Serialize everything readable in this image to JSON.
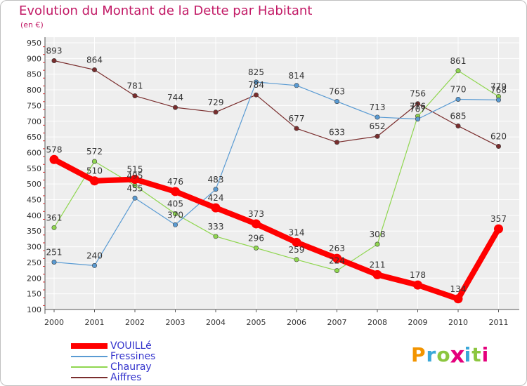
{
  "title": "Evolution du Montant de la Dette par Habitant",
  "unit": "(en €)",
  "logo": {
    "letters": [
      "P",
      "r",
      "o",
      "x",
      "i",
      "t",
      "i"
    ],
    "colors": [
      "#f29400",
      "#3aa8d8",
      "#8cc63f",
      "#e4007c",
      "#3aa8d8",
      "#8cc63f",
      "#e4007c"
    ]
  },
  "chart_data": {
    "type": "line",
    "title": "Evolution du Montant de la Dette par Habitant",
    "ylabel": "(en €)",
    "x": [
      "2000",
      "2001",
      "2002",
      "2003",
      "2004",
      "2005",
      "2006",
      "2007",
      "2008",
      "2009",
      "2010",
      "2011"
    ],
    "ylim": [
      100,
      950
    ],
    "yticks": [
      "100",
      "150",
      "200",
      "250",
      "300",
      "350",
      "400",
      "450",
      "500",
      "550",
      "600",
      "650",
      "700",
      "750",
      "800",
      "850",
      "900",
      "950"
    ],
    "grid": true,
    "legend_position": "bottom-left",
    "series": [
      {
        "name": "VOUILLé",
        "values": [
          578,
          510,
          515,
          476,
          424,
          373,
          314,
          263,
          211,
          178,
          134,
          357
        ],
        "color": "#ff0000"
      },
      {
        "name": "Fressines",
        "values": [
          251,
          240,
          455,
          370,
          483,
          825,
          814,
          763,
          713,
          707,
          770,
          768
        ],
        "color": "#5a9bd3"
      },
      {
        "name": "Chauray",
        "values": [
          361,
          572,
          495,
          405,
          333,
          296,
          259,
          224,
          308,
          716,
          861,
          779
        ],
        "color": "#8fd64f"
      },
      {
        "name": "Aiffres",
        "values": [
          893,
          864,
          781,
          744,
          729,
          784,
          677,
          633,
          652,
          756,
          685,
          620
        ],
        "color": "#7a2e2e"
      }
    ],
    "value_labels": [
      [
        "578",
        "510",
        "515",
        "476",
        "424",
        "373",
        "314",
        "263",
        "211",
        "178",
        "134",
        "357"
      ],
      [
        "251",
        "240",
        "455",
        "370",
        "483",
        "825",
        "814",
        "763",
        "713",
        "707",
        "770",
        "768"
      ],
      [
        "361",
        "572",
        "495",
        "405",
        "333",
        "296",
        "259",
        "224",
        "308",
        "716",
        "861",
        "779"
      ],
      [
        "893",
        "864",
        "781",
        "744",
        "729",
        "784",
        "677",
        "633",
        "652",
        "756",
        "685",
        "620"
      ]
    ]
  }
}
